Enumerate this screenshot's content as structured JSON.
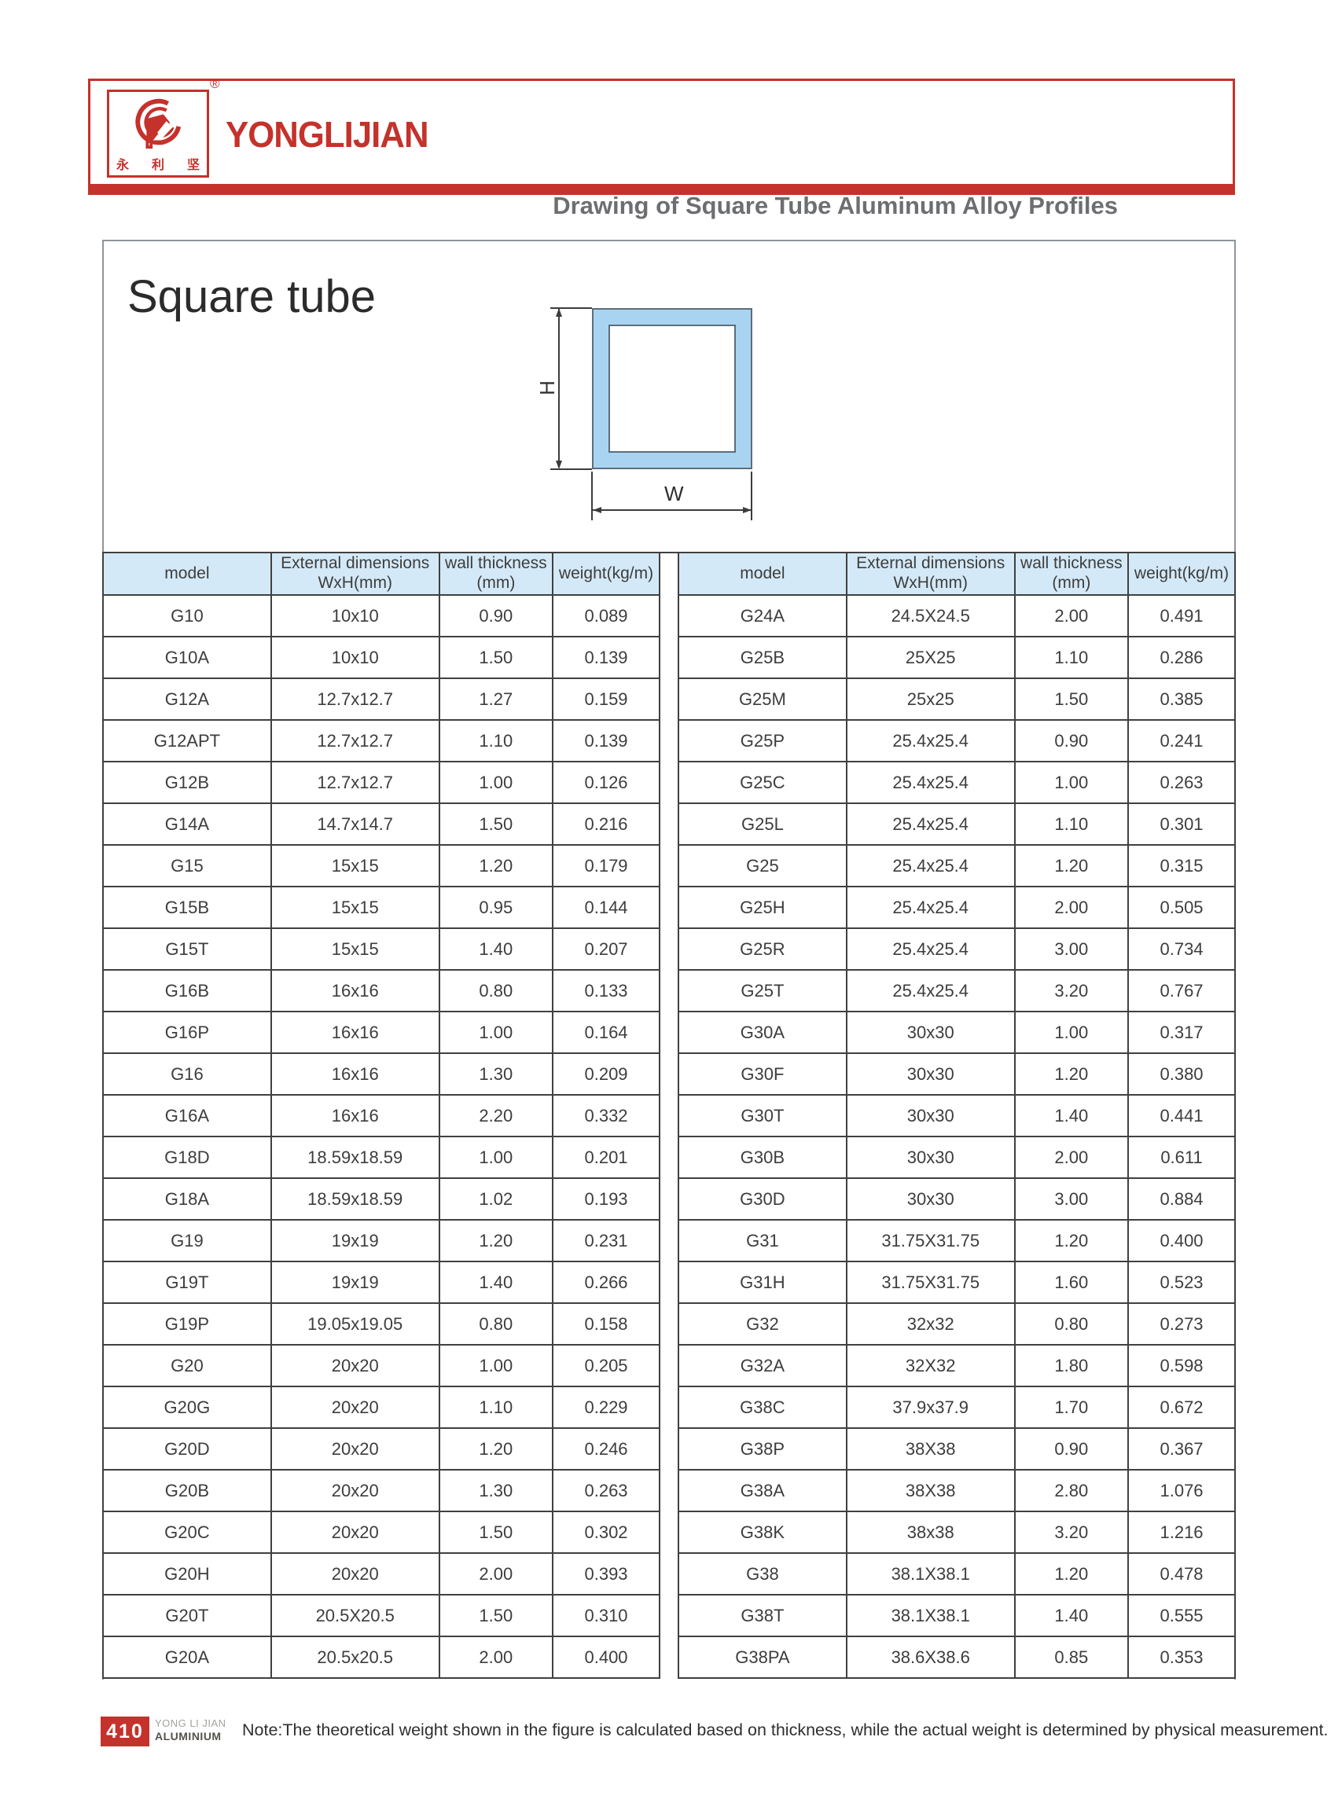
{
  "header": {
    "brand_name": "YONGLIJIAN",
    "brand_chinese": [
      "永",
      "利",
      "坚"
    ],
    "registered_mark": "®",
    "title": "Drawing of Square Tube Aluminum Alloy Profiles"
  },
  "section": {
    "title": "Square tube",
    "diagram": {
      "height_label": "H",
      "width_label": "W"
    }
  },
  "table": {
    "columns": [
      {
        "line1": "model",
        "line2": ""
      },
      {
        "line1": "External dimensions",
        "line2": "WxH(mm)"
      },
      {
        "line1": "wall thickness",
        "line2": "(mm)"
      },
      {
        "line1": "weight(kg/m)",
        "line2": ""
      }
    ]
  },
  "left_table": {
    "rows": [
      [
        "G10",
        "10x10",
        "0.90",
        "0.089"
      ],
      [
        "G10A",
        "10x10",
        "1.50",
        "0.139"
      ],
      [
        "G12A",
        "12.7x12.7",
        "1.27",
        "0.159"
      ],
      [
        "G12APT",
        "12.7x12.7",
        "1.10",
        "0.139"
      ],
      [
        "G12B",
        "12.7x12.7",
        "1.00",
        "0.126"
      ],
      [
        "G14A",
        "14.7x14.7",
        "1.50",
        "0.216"
      ],
      [
        "G15",
        "15x15",
        "1.20",
        "0.179"
      ],
      [
        "G15B",
        "15x15",
        "0.95",
        "0.144"
      ],
      [
        "G15T",
        "15x15",
        "1.40",
        "0.207"
      ],
      [
        "G16B",
        "16x16",
        "0.80",
        "0.133"
      ],
      [
        "G16P",
        "16x16",
        "1.00",
        "0.164"
      ],
      [
        "G16",
        "16x16",
        "1.30",
        "0.209"
      ],
      [
        "G16A",
        "16x16",
        "2.20",
        "0.332"
      ],
      [
        "G18D",
        "18.59x18.59",
        "1.00",
        "0.201"
      ],
      [
        "G18A",
        "18.59x18.59",
        "1.02",
        "0.193"
      ],
      [
        "G19",
        "19x19",
        "1.20",
        "0.231"
      ],
      [
        "G19T",
        "19x19",
        "1.40",
        "0.266"
      ],
      [
        "G19P",
        "19.05x19.05",
        "0.80",
        "0.158"
      ],
      [
        "G20",
        "20x20",
        "1.00",
        "0.205"
      ],
      [
        "G20G",
        "20x20",
        "1.10",
        "0.229"
      ],
      [
        "G20D",
        "20x20",
        "1.20",
        "0.246"
      ],
      [
        "G20B",
        "20x20",
        "1.30",
        "0.263"
      ],
      [
        "G20C",
        "20x20",
        "1.50",
        "0.302"
      ],
      [
        "G20H",
        "20x20",
        "2.00",
        "0.393"
      ],
      [
        "G20T",
        "20.5X20.5",
        "1.50",
        "0.310"
      ],
      [
        "G20A",
        "20.5x20.5",
        "2.00",
        "0.400"
      ]
    ]
  },
  "right_table": {
    "rows": [
      [
        "G24A",
        "24.5X24.5",
        "2.00",
        "0.491"
      ],
      [
        "G25B",
        "25X25",
        "1.10",
        "0.286"
      ],
      [
        "G25M",
        "25x25",
        "1.50",
        "0.385"
      ],
      [
        "G25P",
        "25.4x25.4",
        "0.90",
        "0.241"
      ],
      [
        "G25C",
        "25.4x25.4",
        "1.00",
        "0.263"
      ],
      [
        "G25L",
        "25.4x25.4",
        "1.10",
        "0.301"
      ],
      [
        "G25",
        "25.4x25.4",
        "1.20",
        "0.315"
      ],
      [
        "G25H",
        "25.4x25.4",
        "2.00",
        "0.505"
      ],
      [
        "G25R",
        "25.4x25.4",
        "3.00",
        "0.734"
      ],
      [
        "G25T",
        "25.4x25.4",
        "3.20",
        "0.767"
      ],
      [
        "G30A",
        "30x30",
        "1.00",
        "0.317"
      ],
      [
        "G30F",
        "30x30",
        "1.20",
        "0.380"
      ],
      [
        "G30T",
        "30x30",
        "1.40",
        "0.441"
      ],
      [
        "G30B",
        "30x30",
        "2.00",
        "0.611"
      ],
      [
        "G30D",
        "30x30",
        "3.00",
        "0.884"
      ],
      [
        "G31",
        "31.75X31.75",
        "1.20",
        "0.400"
      ],
      [
        "G31H",
        "31.75X31.75",
        "1.60",
        "0.523"
      ],
      [
        "G32",
        "32x32",
        "0.80",
        "0.273"
      ],
      [
        "G32A",
        "32X32",
        "1.80",
        "0.598"
      ],
      [
        "G38C",
        "37.9x37.9",
        "1.70",
        "0.672"
      ],
      [
        "G38P",
        "38X38",
        "0.90",
        "0.367"
      ],
      [
        "G38A",
        "38X38",
        "2.80",
        "1.076"
      ],
      [
        "G38K",
        "38x38",
        "3.20",
        "1.216"
      ],
      [
        "G38",
        "38.1X38.1",
        "1.20",
        "0.478"
      ],
      [
        "G38T",
        "38.1X38.1",
        "1.40",
        "0.555"
      ],
      [
        "G38PA",
        "38.6X38.6",
        "0.85",
        "0.353"
      ]
    ]
  },
  "footer": {
    "page_number": "410",
    "brand_line1": "YONG LI JIAN",
    "brand_line2": "ALUMINIUM",
    "note": "Note:The theoretical weight shown in the figure is calculated based on thickness, while the actual weight is determined by physical measurement."
  },
  "colors": {
    "brand_red": "#c4322b",
    "table_header_blue": "#d4e9f7",
    "diagram_fill_blue": "#a8d4f1",
    "title_gray": "#6d6e71",
    "table_line": "#404040"
  }
}
